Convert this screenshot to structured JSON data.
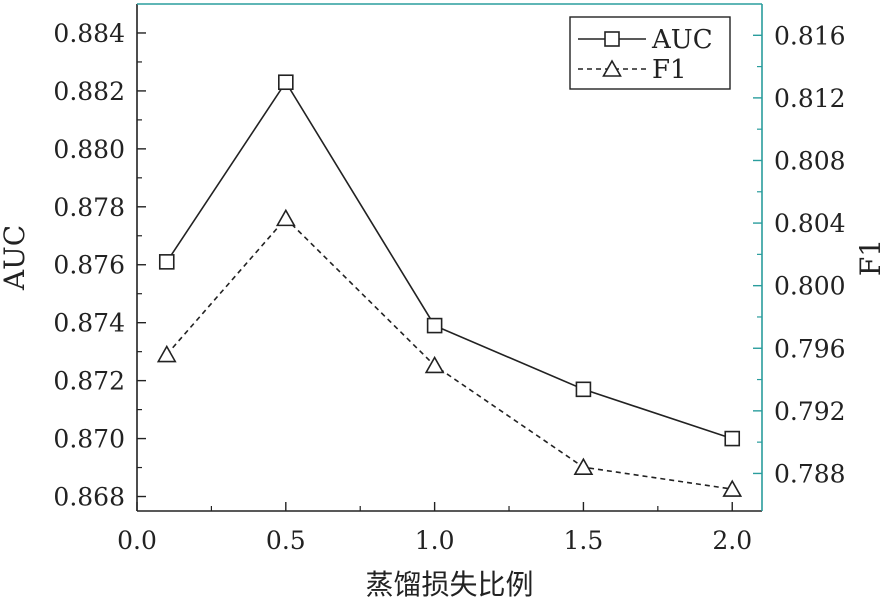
{
  "chart_data": {
    "type": "line",
    "xlabel": "蒸馏损失比例",
    "ylabel_left": "AUC",
    "ylabel_right": "F1",
    "x": [
      0.1,
      0.5,
      1.0,
      1.5,
      2.0
    ],
    "xlim": [
      0.0,
      2.1
    ],
    "x_ticks": [
      "0.0",
      "0.5",
      "1.0",
      "1.5",
      "2.0"
    ],
    "x_tick_values": [
      0.0,
      0.5,
      1.0,
      1.5,
      2.0
    ],
    "ylim_left": [
      0.8675,
      0.885
    ],
    "y_ticks_left": [
      "0.868",
      "0.870",
      "0.872",
      "0.874",
      "0.876",
      "0.878",
      "0.880",
      "0.882",
      "0.884"
    ],
    "y_tick_values_left": [
      0.868,
      0.87,
      0.872,
      0.874,
      0.876,
      0.878,
      0.88,
      0.882,
      0.884
    ],
    "ylim_right": [
      0.7856,
      0.818
    ],
    "y_ticks_right": [
      "0.788",
      "0.792",
      "0.796",
      "0.800",
      "0.804",
      "0.808",
      "0.812",
      "0.816"
    ],
    "y_tick_values_right": [
      0.788,
      0.792,
      0.796,
      0.8,
      0.804,
      0.808,
      0.812,
      0.816
    ],
    "series": [
      {
        "name": "AUC",
        "axis": "left",
        "values": [
          0.8761,
          0.8823,
          0.8739,
          0.8717,
          0.87
        ],
        "marker": "square",
        "line": "solid",
        "color": "#222222"
      },
      {
        "name": "F1",
        "axis": "right",
        "values": [
          0.7956,
          0.8043,
          0.7949,
          0.7884,
          0.787
        ],
        "marker": "triangle",
        "line": "dashed",
        "color": "#222222"
      }
    ],
    "legend": "top-right",
    "grid": false,
    "right_axis_color": "#2a9d9d"
  }
}
